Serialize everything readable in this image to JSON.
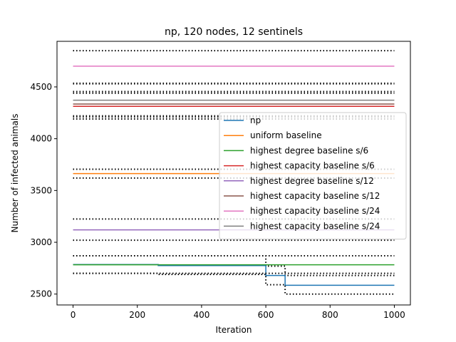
{
  "chart_data": {
    "type": "line",
    "title": "np, 120 nodes, 12 sentinels",
    "xlabel": "Iteration",
    "ylabel": "Number of infected animals",
    "xlim": [
      -50,
      1050
    ],
    "ylim": [
      2395,
      4940
    ],
    "xticks": [
      0,
      200,
      400,
      600,
      800,
      1000
    ],
    "yticks": [
      2500,
      3000,
      3500,
      4000,
      4500
    ],
    "legend_position": "right",
    "series": [
      {
        "name": "np",
        "color": "#1f77b4",
        "style": "step",
        "x": [
          0,
          265,
          600,
          660,
          1000
        ],
        "y": [
          2785,
          2775,
          2680,
          2585,
          2585
        ],
        "band_lower": [
          2700,
          2690,
          2590,
          2500,
          2500
        ],
        "band_upper": [
          2870,
          2870,
          2770,
          2680,
          2680
        ]
      },
      {
        "name": "uniform baseline",
        "color": "#ff7f0e",
        "value": 3663,
        "band": [
          3620,
          3705
        ]
      },
      {
        "name": "highest degree baseline s/6",
        "color": "#2ca02c",
        "value": 2783,
        "band": [
          2700,
          2870
        ]
      },
      {
        "name": "highest capacity baseline s/6",
        "color": "#d62728",
        "value": 4312,
        "band": [
          4190,
          4440
        ]
      },
      {
        "name": "highest degree baseline s/12",
        "color": "#9467bd",
        "value": 3120,
        "band": [
          3020,
          3225
        ]
      },
      {
        "name": "highest capacity baseline s/12",
        "color": "#8c564b",
        "value": 4335,
        "band": [
          4210,
          4455
        ]
      },
      {
        "name": "highest capacity baseline s/24",
        "color": "#e377c2",
        "value": 4700,
        "band": [
          4535,
          4850
        ]
      },
      {
        "name": "highest capacity baseline s/24",
        "color": "#7f7f7f",
        "value": 4372,
        "band": [
          4220,
          4530
        ]
      }
    ]
  }
}
